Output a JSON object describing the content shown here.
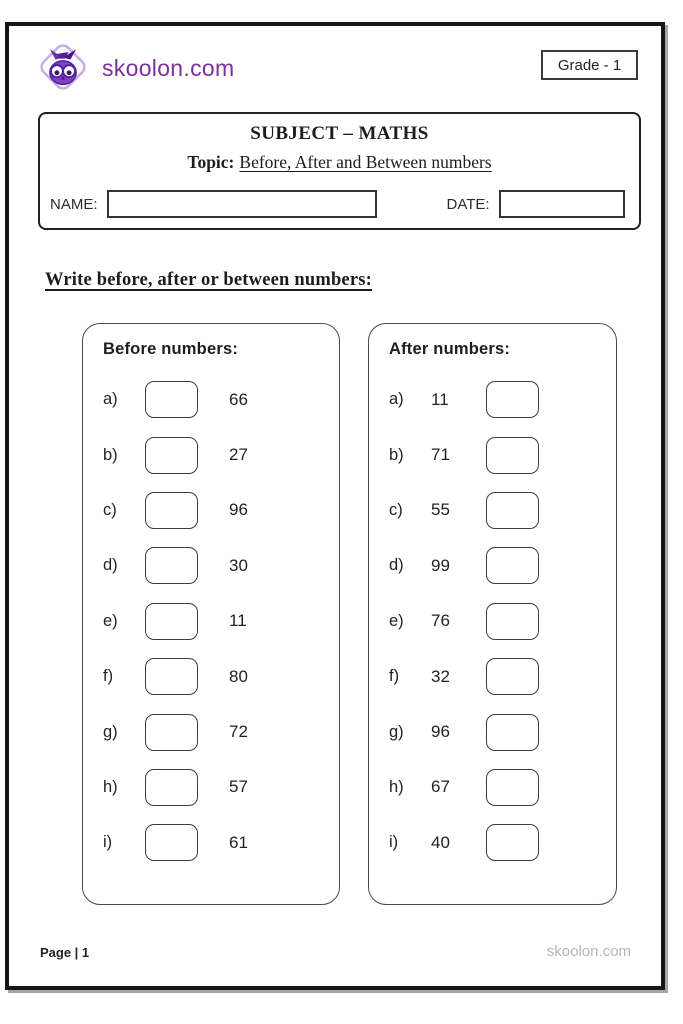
{
  "header": {
    "brand": "skoolon.com",
    "grade": "Grade - 1",
    "logo_icon": "owl-diamond-logo"
  },
  "subject": {
    "title": "SUBJECT – MATHS",
    "topic_label": "Topic:",
    "topic_text": "Before, After and Between numbers",
    "name_label": "NAME:",
    "date_label": "DATE:",
    "name_value": "",
    "date_value": ""
  },
  "instruction": "Write before, after or between numbers:",
  "panels": [
    {
      "id": "before-numbers",
      "title": "Before numbers:",
      "box_position": "before",
      "rows": [
        {
          "label": "a)",
          "number": "66"
        },
        {
          "label": "b)",
          "number": "27"
        },
        {
          "label": "c)",
          "number": "96"
        },
        {
          "label": "d)",
          "number": "30"
        },
        {
          "label": "e)",
          "number": "11"
        },
        {
          "label": "f)",
          "number": "80"
        },
        {
          "label": "g)",
          "number": "72"
        },
        {
          "label": "h)",
          "number": "57"
        },
        {
          "label": "i)",
          "number": "61"
        }
      ]
    },
    {
      "id": "after-numbers",
      "title": "After numbers:",
      "box_position": "after",
      "rows": [
        {
          "label": "a)",
          "number": "11"
        },
        {
          "label": "b)",
          "number": "71"
        },
        {
          "label": "c)",
          "number": "55"
        },
        {
          "label": "d)",
          "number": "99"
        },
        {
          "label": "e)",
          "number": "76"
        },
        {
          "label": "f)",
          "number": "32"
        },
        {
          "label": "g)",
          "number": "96"
        },
        {
          "label": "h)",
          "number": "67"
        },
        {
          "label": "i)",
          "number": "40"
        }
      ]
    }
  ],
  "footer": {
    "page": "Page | 1",
    "brand": "skoolon.com"
  },
  "colors": {
    "brand_purple": "#7c2f9f",
    "frame_black": "#161616",
    "shadow_gray": "#a6a6a6",
    "box_border": "#3d3d3d",
    "footer_gray": "#b6b6b6",
    "logo_outline": "#c4aee0",
    "logo_owl": "#7d44c2",
    "logo_dark": "#55209b"
  }
}
